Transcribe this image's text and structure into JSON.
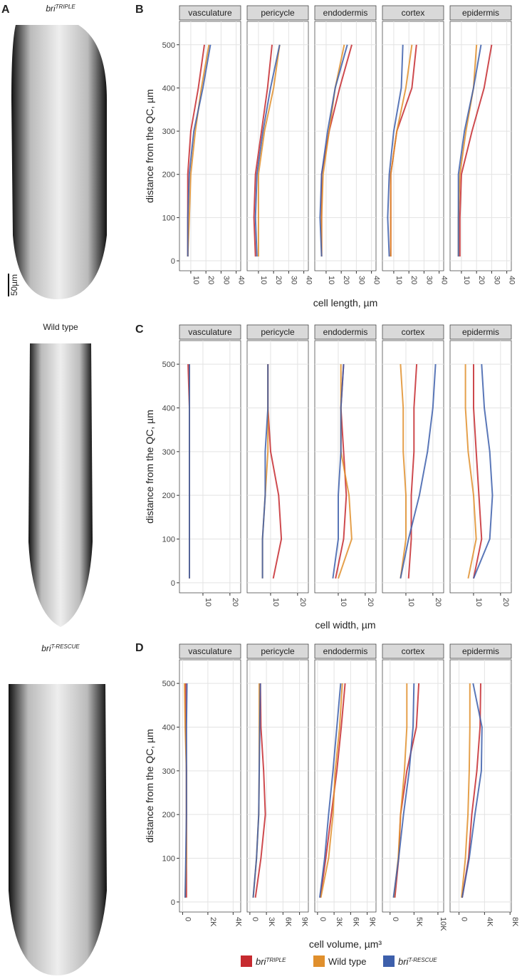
{
  "panel_labels": [
    "A",
    "B",
    "C",
    "D"
  ],
  "images": [
    {
      "label": {
        "base": "bri",
        "sup": "TRIPLE"
      },
      "scale_bar": "50µm"
    },
    {
      "label": "Wild type"
    },
    {
      "label": {
        "base": "bri",
        "sup": "T-RESCUE"
      }
    }
  ],
  "legend": [
    {
      "name": {
        "base": "bri",
        "sup": "TRIPLE"
      },
      "color": "#c62a2f"
    },
    {
      "name": "Wild type",
      "color": "#e08f2c"
    },
    {
      "name": {
        "base": "bri",
        "sup": "T-RESCUE"
      },
      "color": "#3d5fab"
    }
  ],
  "chart_data": [
    {
      "type": "line",
      "xlabel": "cell length, µm",
      "ylabel": "distance from the QC, µm",
      "distance": [
        10,
        100,
        200,
        300,
        400,
        500
      ],
      "ylim": [
        -23,
        554
      ],
      "yticks": [
        0,
        100,
        200,
        300,
        400,
        500
      ],
      "facets": [
        {
          "name": "vasculature",
          "xlim": [
            2.5,
            43
          ],
          "xticks": [
            10,
            20,
            30,
            40
          ],
          "series": [
            {
              "values": [
                8,
                8,
                8,
                10,
                15,
                19
              ]
            },
            {
              "values": [
                8,
                9,
                10,
                13,
                17,
                22
              ]
            },
            {
              "values": [
                8,
                8,
                9,
                12,
                18,
                23
              ]
            }
          ]
        },
        {
          "name": "pericycle",
          "xlim": [
            2.5,
            43
          ],
          "xticks": [
            10,
            20,
            30,
            40
          ],
          "series": [
            {
              "values": [
                8,
                7,
                8,
                12,
                16,
                19
              ]
            },
            {
              "values": [
                10,
                10,
                10,
                14,
                20,
                24
              ]
            },
            {
              "values": [
                9,
                8,
                9,
                13,
                18,
                24
              ]
            }
          ]
        },
        {
          "name": "endodermis",
          "xlim": [
            2.5,
            43
          ],
          "xticks": [
            10,
            20,
            30,
            40
          ],
          "series": [
            {
              "values": [
                7,
                7,
                7,
                12,
                19,
                27
              ]
            },
            {
              "values": [
                7,
                7,
                8,
                12,
                16,
                22
              ]
            },
            {
              "values": [
                7,
                6,
                7,
                11,
                16,
                24
              ]
            }
          ]
        },
        {
          "name": "cortex",
          "xlim": [
            2.5,
            43
          ],
          "xticks": [
            10,
            20,
            30,
            40
          ],
          "series": [
            {
              "values": [
                8,
                8,
                8,
                12,
                22,
                25
              ]
            },
            {
              "values": [
                8,
                8,
                8,
                12,
                18,
                22
              ]
            },
            {
              "values": [
                7,
                6,
                7,
                10,
                15,
                16
              ]
            }
          ]
        },
        {
          "name": "epidermis",
          "xlim": [
            2.5,
            43
          ],
          "xticks": [
            10,
            20,
            30,
            40
          ],
          "series": [
            {
              "values": [
                9,
                9,
                10,
                17,
                25,
                30
              ]
            },
            {
              "values": [
                8,
                8,
                9,
                13,
                18,
                20
              ]
            },
            {
              "values": [
                8,
                8,
                8,
                12,
                18,
                23
              ]
            }
          ]
        }
      ]
    },
    {
      "type": "line",
      "xlabel": "cell width, µm",
      "ylabel": "distance from the QC, µm",
      "distance": [
        10,
        100,
        200,
        300,
        400,
        500
      ],
      "ylim": [
        -23,
        554
      ],
      "yticks": [
        0,
        100,
        200,
        300,
        400,
        500
      ],
      "facets": [
        {
          "name": "vasculature",
          "xlim": [
            1.3,
            24
          ],
          "xticks": [
            10,
            20
          ],
          "series": [
            {
              "values": [
                5,
                5,
                5,
                5,
                5,
                4.5
              ]
            },
            {
              "values": [
                5,
                5,
                5,
                5,
                5,
                5
              ]
            },
            {
              "values": [
                5,
                5,
                5,
                5,
                5,
                5
              ]
            }
          ]
        },
        {
          "name": "pericycle",
          "xlim": [
            1.3,
            24
          ],
          "xticks": [
            10,
            20
          ],
          "series": [
            {
              "values": [
                11,
                14,
                13,
                10,
                9,
                9
              ]
            },
            {
              "values": [
                7,
                7,
                8,
                9,
                9,
                9
              ]
            },
            {
              "values": [
                7,
                7,
                8,
                8,
                9,
                9
              ]
            }
          ]
        },
        {
          "name": "endodermis",
          "xlim": [
            1.3,
            24
          ],
          "xticks": [
            10,
            20
          ],
          "series": [
            {
              "values": [
                9,
                12,
                13,
                12,
                11,
                12
              ]
            },
            {
              "values": [
                10,
                15,
                14,
                11,
                11,
                11
              ]
            },
            {
              "values": [
                8,
                10,
                10,
                11,
                11,
                12
              ]
            }
          ]
        },
        {
          "name": "cortex",
          "xlim": [
            1.3,
            24
          ],
          "xticks": [
            10,
            20
          ],
          "series": [
            {
              "values": [
                11,
                12,
                12,
                13,
                13,
                14
              ]
            },
            {
              "values": [
                8,
                10,
                10,
                9,
                9,
                8
              ]
            },
            {
              "values": [
                8,
                11,
                15,
                18,
                20,
                21
              ]
            }
          ]
        },
        {
          "name": "epidermis",
          "xlim": [
            1.3,
            24
          ],
          "xticks": [
            10,
            20
          ],
          "series": [
            {
              "values": [
                10,
                13,
                12,
                11,
                10,
                10
              ]
            },
            {
              "values": [
                8,
                11,
                10,
                8,
                7,
                7
              ]
            },
            {
              "values": [
                10,
                16,
                17,
                16,
                14,
                13
              ]
            }
          ]
        }
      ]
    },
    {
      "type": "line",
      "xlabel": "cell volume, µm³",
      "ylabel": "distance from the QC, µm",
      "distance": [
        10,
        100,
        200,
        300,
        400,
        500
      ],
      "ylim": [
        -23,
        554
      ],
      "yticks": [
        0,
        100,
        200,
        300,
        400,
        500
      ],
      "facets": [
        {
          "name": "vasculature",
          "xlim": [
            -250,
            4600
          ],
          "xticks": [
            0,
            {
              "value": 2000,
              "label": "2K"
            },
            {
              "value": 4000,
              "label": "4K"
            }
          ],
          "series": [
            {
              "values": [
                300,
                300,
                300,
                300,
                250,
                250
              ]
            },
            {
              "values": [
                200,
                300,
                300,
                300,
                200,
                150
              ]
            },
            {
              "values": [
                200,
                250,
                300,
                300,
                300,
                350
              ]
            }
          ]
        },
        {
          "name": "pericycle",
          "xlim": [
            -500,
            10600
          ],
          "xticks": [
            0,
            {
              "value": 3000,
              "label": "3K"
            },
            {
              "value": 6000,
              "label": "6K"
            },
            {
              "value": 9000,
              "label": "9K"
            }
          ],
          "series": [
            {
              "values": [
                1000,
                2000,
                2800,
                2500,
                2000,
                1900
              ]
            },
            {
              "values": [
                600,
                1200,
                1600,
                1700,
                1700,
                1700
              ]
            },
            {
              "values": [
                600,
                1200,
                1600,
                1700,
                1800,
                1900
              ]
            }
          ]
        },
        {
          "name": "endodermis",
          "xlim": [
            -500,
            10600
          ],
          "xticks": [
            0,
            {
              "value": 3000,
              "label": "3K"
            },
            {
              "value": 6000,
              "label": "6K"
            },
            {
              "value": 9000,
              "label": "9K"
            }
          ],
          "series": [
            {
              "values": [
                500,
                1500,
                2500,
                3500,
                4300,
                5000
              ]
            },
            {
              "values": [
                600,
                2000,
                2800,
                3200,
                4000,
                4500
              ]
            },
            {
              "values": [
                400,
                1300,
                2000,
                2800,
                3500,
                4200
              ]
            }
          ]
        },
        {
          "name": "cortex",
          "xlim": [
            -1600,
            11200
          ],
          "xticks": [
            0,
            {
              "value": 5000,
              "label": "5K"
            },
            {
              "value": 10000,
              "label": "10K"
            }
          ],
          "series": [
            {
              "values": [
                1000,
                1800,
                2200,
                3500,
                5500,
                6000
              ]
            },
            {
              "values": [
                800,
                1700,
                2200,
                3000,
                3500,
                3500
              ]
            },
            {
              "values": [
                700,
                1800,
                2800,
                4000,
                4800,
                5000
              ]
            }
          ]
        },
        {
          "name": "epidermis",
          "xlim": [
            -1400,
            8200
          ],
          "xticks": [
            0,
            {
              "value": 4000,
              "label": "4K"
            },
            {
              "value": 8000,
              "label": "8K"
            }
          ],
          "series": [
            {
              "values": [
                500,
                1500,
                2000,
                2800,
                3300,
                3400
              ]
            },
            {
              "values": [
                400,
                1000,
                1400,
                1600,
                1700,
                1700
              ]
            },
            {
              "values": [
                500,
                1600,
                2500,
                3500,
                3600,
                2200
              ]
            }
          ]
        }
      ]
    }
  ]
}
